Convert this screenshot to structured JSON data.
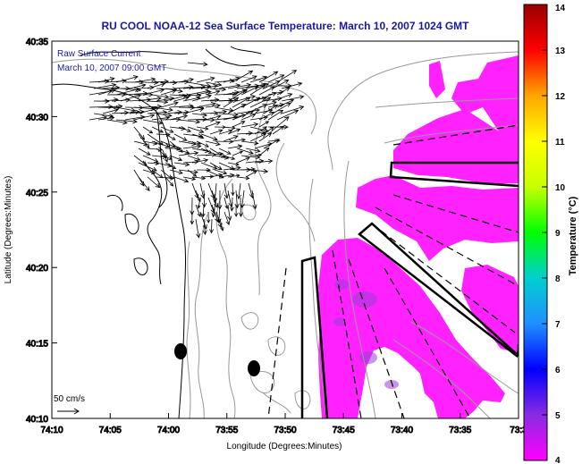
{
  "title": "RU COOL  NOAA-12  Sea Surface Temperature:  March 10, 2007 1024 GMT",
  "inset": {
    "line1": "Raw Surface Current",
    "line2": "March 10, 2007 09:00 GMT"
  },
  "axes": {
    "xlabel": "Longitude (Degrees:Minutes)",
    "ylabel": "Latitude (Degrees:Minutes)",
    "xticks": [
      "74:10",
      "74:05",
      "74:00",
      "73:55",
      "73:50",
      "73:45",
      "73:40",
      "73:35",
      "73:3"
    ],
    "yticks": [
      "40:35",
      "40:30",
      "40:25",
      "40:20",
      "40:15",
      "40:10"
    ]
  },
  "scale_label": "50 cm/s",
  "colorbar": {
    "label": "Temperature (°C)",
    "ticks": [
      "14",
      "13",
      "12",
      "11",
      "10",
      "9",
      "8",
      "7",
      "6",
      "5",
      "4"
    ],
    "colors": [
      "#ff00ff",
      "#8a2be2",
      "#0000ff",
      "#1e90ff",
      "#00cfd0",
      "#00ff00",
      "#c8ff00",
      "#ffff00",
      "#ffa500",
      "#ff0000",
      "#9a0000"
    ]
  },
  "map": {
    "sst_color": "#ff22ff",
    "cool_patch_color": "#9c3fd9",
    "land_color": "#ffffff",
    "coast_color": "#000000",
    "contour_color": "#999999"
  }
}
